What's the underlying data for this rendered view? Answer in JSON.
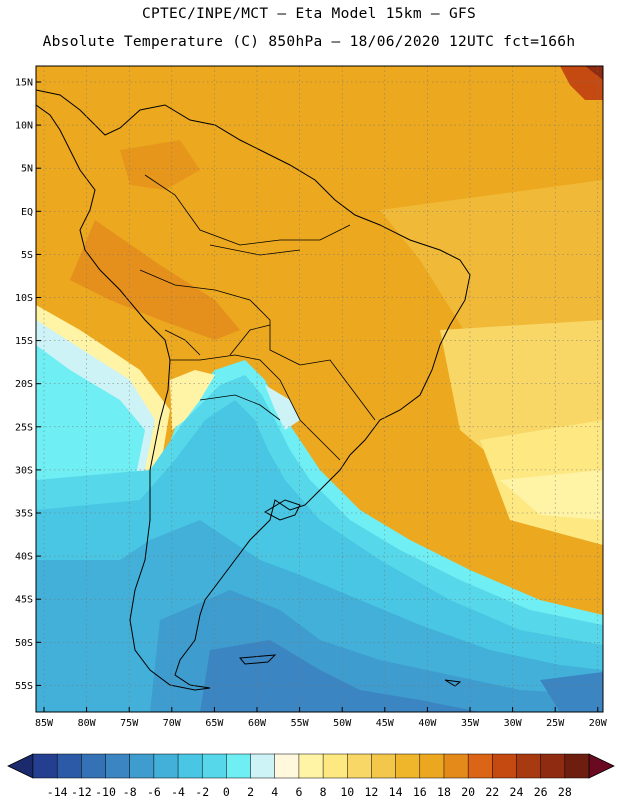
{
  "header": {
    "line1": "CPTEC/INPE/MCT –  Eta Model 15km – GFS",
    "line2": "Absolute Temperature (C) 850hPa – 18/06/2020 12UTC fct=166h"
  },
  "map": {
    "lat_labels": [
      "15N",
      "10N",
      "5N",
      "EQ",
      "5S",
      "10S",
      "15S",
      "20S",
      "25S",
      "30S",
      "35S",
      "40S",
      "45S",
      "50S",
      "55S"
    ],
    "lon_labels": [
      "85W",
      "80W",
      "75W",
      "70W",
      "65W",
      "60W",
      "55W",
      "50W",
      "45W",
      "40W",
      "35W",
      "30W",
      "25W",
      "20W"
    ]
  },
  "colorbar": {
    "labels": [
      "-14",
      "-12",
      "-10",
      "-8",
      "-6",
      "-4",
      "-2",
      "0",
      "2",
      "4",
      "6",
      "8",
      "10",
      "12",
      "14",
      "16",
      "18",
      "20",
      "22",
      "24",
      "26",
      "28"
    ],
    "colors": [
      "#243f8f",
      "#2d5aa6",
      "#3572b5",
      "#3b86c2",
      "#3f9cce",
      "#42b0d8",
      "#48c6e3",
      "#56d8ea",
      "#6feef4",
      "#cdf3f6",
      "#fff8dc",
      "#fff3a6",
      "#fde882",
      "#f8d766",
      "#f3c74a",
      "#efb62b",
      "#eba71f",
      "#e48a1b",
      "#dc6416",
      "#c44a12",
      "#a83a11",
      "#8e2b10",
      "#6d1e0f"
    ],
    "arrow_left": "#1a2a6c",
    "arrow_right": "#6a0a22"
  }
}
